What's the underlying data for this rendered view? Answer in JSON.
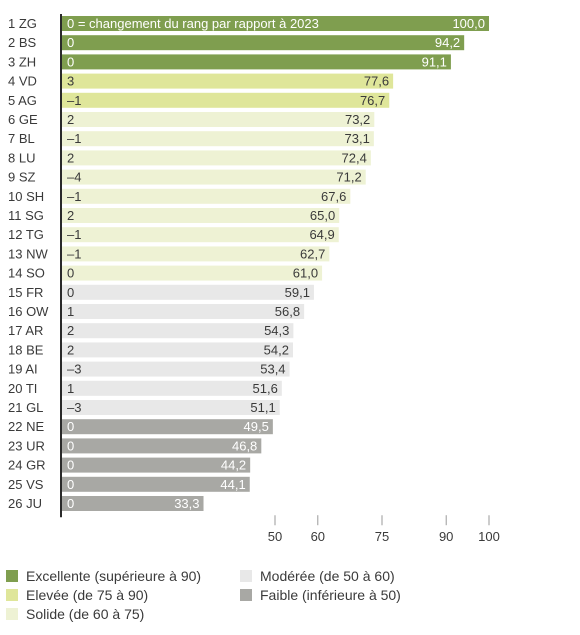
{
  "chart_data": {
    "type": "bar",
    "orientation": "horizontal",
    "note": "0 = changement du rang par rapport à 2023",
    "xlim": [
      0,
      100
    ],
    "x_ticks": [
      50,
      60,
      75,
      90,
      100
    ],
    "x_tick_labels": [
      "50",
      "60",
      "75",
      "90",
      "100"
    ],
    "categories": [
      "1 ZG",
      "2 BS",
      "3 ZH",
      "4 VD",
      "5 AG",
      "6 GE",
      "7 BL",
      "8 LU",
      "9 SZ",
      "10 SH",
      "11 SG",
      "12 TG",
      "13 NW",
      "14 SO",
      "15 FR",
      "16 OW",
      "17 AR",
      "18 BE",
      "19 AI",
      "20 TI",
      "21 GL",
      "22 NE",
      "23 UR",
      "24 GR",
      "25 VS",
      "26 JU"
    ],
    "values": [
      100.0,
      94.2,
      91.1,
      77.6,
      76.7,
      73.2,
      73.1,
      72.4,
      71.2,
      67.6,
      65.0,
      64.9,
      62.7,
      61.0,
      59.1,
      56.8,
      54.3,
      54.2,
      53.4,
      51.6,
      51.1,
      49.5,
      46.8,
      44.2,
      44.1,
      33.3
    ],
    "value_labels": [
      "100,0",
      "94,2",
      "91,1",
      "77,6",
      "76,7",
      "73,2",
      "73,1",
      "72,4",
      "71,2",
      "67,6",
      "65,0",
      "64,9",
      "62,7",
      "61,0",
      "59,1",
      "56,8",
      "54,3",
      "54,2",
      "53,4",
      "51,6",
      "51,1",
      "49,5",
      "46,8",
      "44,2",
      "44,1",
      "33,3"
    ],
    "rank_changes": [
      "0",
      "0",
      "0",
      "3",
      "–1",
      "2",
      "–1",
      "2",
      "–4",
      "–1",
      "2",
      "–1",
      "–1",
      "0",
      "0",
      "1",
      "2",
      "2",
      "–3",
      "1",
      "–3",
      "0",
      "0",
      "0",
      "0",
      "0"
    ],
    "categories_class": [
      "excellent",
      "excellent",
      "excellent",
      "elevated",
      "elevated",
      "solid",
      "solid",
      "solid",
      "solid",
      "solid",
      "solid",
      "solid",
      "solid",
      "solid",
      "moderate",
      "moderate",
      "moderate",
      "moderate",
      "moderate",
      "moderate",
      "moderate",
      "weak",
      "weak",
      "weak",
      "weak",
      "weak"
    ],
    "colors": {
      "excellent": "#7f9e4f",
      "elevated": "#dfe69a",
      "solid": "#eef2d4",
      "moderate": "#e8e8e8",
      "weak": "#a8a8a4"
    },
    "legend": [
      {
        "key": "excellent",
        "label": "Excellente (supérieure à 90)"
      },
      {
        "key": "elevated",
        "label": "Elevée (de 75 à 90)"
      },
      {
        "key": "solid",
        "label": "Solide (de 60 à 75)"
      },
      {
        "key": "moderate",
        "label": "Modérée (de 50 à 60)"
      },
      {
        "key": "weak",
        "label": "Faible (inférieure à 50)"
      }
    ]
  }
}
